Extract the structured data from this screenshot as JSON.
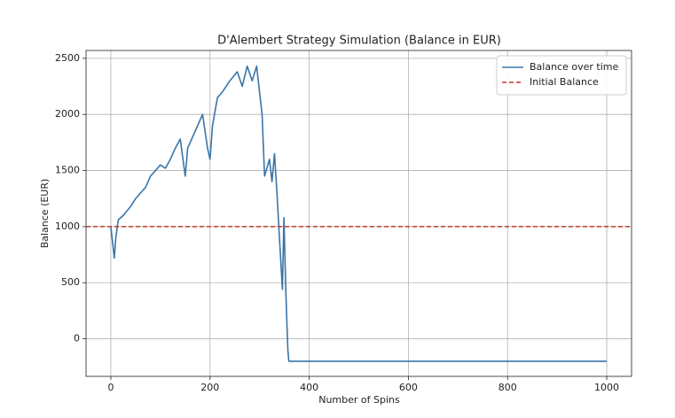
{
  "chart_data": {
    "type": "line",
    "title": "D'Alembert Strategy Simulation (Balance in EUR)",
    "x_label": "Number of Spins",
    "y_label": "Balance (EUR)",
    "x": [
      0,
      7,
      10,
      15,
      25,
      40,
      50,
      60,
      70,
      80,
      90,
      100,
      110,
      120,
      130,
      140,
      150,
      155,
      165,
      175,
      185,
      195,
      200,
      205,
      215,
      225,
      240,
      255,
      265,
      275,
      285,
      294,
      305,
      310,
      320,
      325,
      330,
      335,
      340,
      346,
      349,
      353,
      357,
      359,
      1000
    ],
    "series": [
      {
        "name": "Balance over time",
        "color": "#3a75a8",
        "values": [
          1000,
          720,
          900,
          1060,
          1100,
          1180,
          1250,
          1300,
          1350,
          1450,
          1500,
          1550,
          1520,
          1600,
          1700,
          1780,
          1450,
          1700,
          1800,
          1900,
          2000,
          1700,
          1600,
          1900,
          2150,
          2200,
          2300,
          2380,
          2250,
          2430,
          2300,
          2430,
          2000,
          1450,
          1600,
          1400,
          1650,
          1300,
          900,
          440,
          1080,
          400,
          -100,
          -200,
          -200
        ]
      }
    ],
    "reference_line": {
      "name": "Initial Balance",
      "value": 1000,
      "color": "#c0392b",
      "dashed": true
    },
    "xlim": [
      -50,
      1050
    ],
    "ylim": [
      -335,
      2570
    ],
    "xticks": [
      0,
      200,
      400,
      600,
      800,
      1000
    ],
    "yticks": [
      0,
      500,
      1000,
      1500,
      2000,
      2500
    ],
    "grid": true,
    "legend": "upper-right"
  }
}
